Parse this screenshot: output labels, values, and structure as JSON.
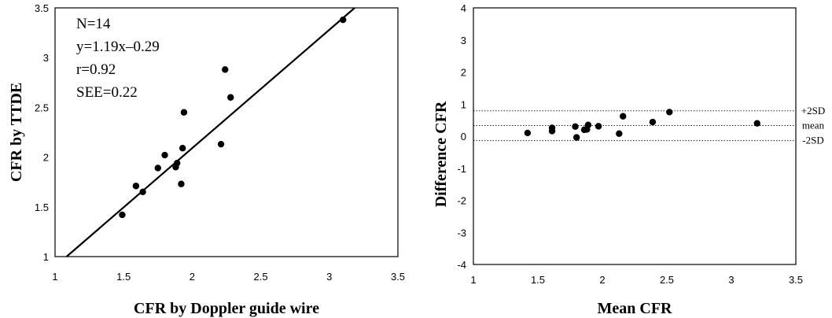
{
  "chart_data": [
    {
      "type": "scatter",
      "xlabel": "CFR by Doppler guide wire",
      "ylabel": "CFR by TTDE",
      "xlim": [
        1,
        3.5
      ],
      "ylim": [
        1,
        3.5
      ],
      "x_ticks": [
        "1",
        "1.5",
        "2",
        "2.5",
        "3",
        "3.5"
      ],
      "y_ticks": [
        "1",
        "1.5",
        "2",
        "2.5",
        "3",
        "3.5"
      ],
      "annotations": [
        "N=14",
        "y=1.19x–0.29",
        "r=0.92",
        "SEE=0.22"
      ],
      "regression_line": {
        "slope": 1.19,
        "intercept": -0.29
      },
      "points": [
        {
          "x": 1.49,
          "y": 1.42
        },
        {
          "x": 1.59,
          "y": 1.71
        },
        {
          "x": 1.64,
          "y": 1.65
        },
        {
          "x": 1.75,
          "y": 1.89
        },
        {
          "x": 1.8,
          "y": 2.02
        },
        {
          "x": 1.88,
          "y": 1.9
        },
        {
          "x": 1.89,
          "y": 1.94
        },
        {
          "x": 1.92,
          "y": 1.73
        },
        {
          "x": 1.93,
          "y": 2.09
        },
        {
          "x": 1.94,
          "y": 2.45
        },
        {
          "x": 2.21,
          "y": 2.13
        },
        {
          "x": 2.24,
          "y": 2.88
        },
        {
          "x": 2.28,
          "y": 2.6
        },
        {
          "x": 3.1,
          "y": 3.38
        }
      ]
    },
    {
      "type": "scatter",
      "xlabel": "Mean CFR",
      "ylabel": "Difference CFR",
      "xlim": [
        1,
        3.5
      ],
      "ylim": [
        -4,
        4
      ],
      "x_ticks": [
        "1",
        "1.5",
        "2",
        "2.5",
        "3",
        "3.5"
      ],
      "y_ticks": [
        "-4",
        "-3",
        "-2",
        "-1",
        "0",
        "1",
        "2",
        "3",
        "4"
      ],
      "reference_lines": [
        {
          "label": "+2SD",
          "y": 0.79
        },
        {
          "label": "mean",
          "y": 0.33
        },
        {
          "label": "-2SD",
          "y": -0.14
        }
      ],
      "points": [
        {
          "x": 1.42,
          "y": 0.1
        },
        {
          "x": 1.61,
          "y": 0.26
        },
        {
          "x": 1.61,
          "y": 0.16
        },
        {
          "x": 1.79,
          "y": 0.3
        },
        {
          "x": 1.8,
          "y": -0.04
        },
        {
          "x": 1.86,
          "y": 0.2
        },
        {
          "x": 1.88,
          "y": 0.21
        },
        {
          "x": 1.89,
          "y": 0.35
        },
        {
          "x": 1.97,
          "y": 0.31
        },
        {
          "x": 2.13,
          "y": 0.08
        },
        {
          "x": 2.16,
          "y": 0.62
        },
        {
          "x": 2.39,
          "y": 0.44
        },
        {
          "x": 2.52,
          "y": 0.75
        },
        {
          "x": 3.2,
          "y": 0.4
        }
      ]
    }
  ]
}
